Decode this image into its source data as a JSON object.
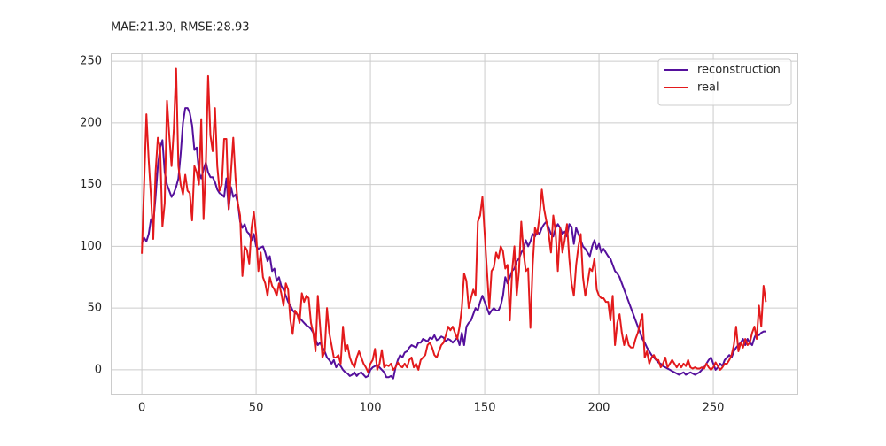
{
  "chart_data": {
    "type": "line",
    "title": "MAE:21.30,  RMSE:28.93",
    "x": [
      0,
      1,
      2,
      3,
      4,
      5,
      6,
      7,
      8,
      9,
      10,
      11,
      12,
      13,
      14,
      15,
      16,
      17,
      18,
      19,
      20,
      21,
      22,
      23,
      24,
      25,
      26,
      27,
      28,
      29,
      30,
      31,
      32,
      33,
      34,
      35,
      36,
      37,
      38,
      39,
      40,
      41,
      42,
      43,
      44,
      45,
      46,
      47,
      48,
      49,
      50,
      51,
      52,
      53,
      54,
      55,
      56,
      57,
      58,
      59,
      60,
      61,
      62,
      63,
      64,
      65,
      66,
      67,
      68,
      69,
      70,
      71,
      72,
      73,
      74,
      75,
      76,
      77,
      78,
      79,
      80,
      81,
      82,
      83,
      84,
      85,
      86,
      87,
      88,
      89,
      90,
      91,
      92,
      93,
      94,
      95,
      96,
      97,
      98,
      99,
      100,
      101,
      102,
      103,
      104,
      105,
      106,
      107,
      108,
      109,
      110,
      111,
      112,
      113,
      114,
      115,
      116,
      117,
      118,
      119,
      120,
      121,
      122,
      123,
      124,
      125,
      126,
      127,
      128,
      129,
      130,
      131,
      132,
      133,
      134,
      135,
      136,
      137,
      138,
      139,
      140,
      141,
      142,
      143,
      144,
      145,
      146,
      147,
      148,
      149,
      150,
      151,
      152,
      153,
      154,
      155,
      156,
      157,
      158,
      159,
      160,
      161,
      162,
      163,
      164,
      165,
      166,
      167,
      168,
      169,
      170,
      171,
      172,
      173,
      174,
      175,
      176,
      177,
      178,
      179,
      180,
      181,
      182,
      183,
      184,
      185,
      186,
      187,
      188,
      189,
      190,
      191,
      192,
      193,
      194,
      195,
      196,
      197,
      198,
      199,
      200,
      201,
      202,
      203,
      204,
      205,
      206,
      207,
      208,
      209,
      210,
      211,
      212,
      213,
      214,
      215,
      216,
      217,
      218,
      219,
      220,
      221,
      222,
      223,
      224,
      225,
      226,
      227,
      228,
      229,
      230,
      231,
      232,
      233,
      234,
      235,
      236,
      237,
      238,
      239,
      240,
      241,
      242,
      243,
      244,
      245,
      246,
      247,
      248,
      249,
      250,
      251,
      252,
      253,
      254,
      255,
      256,
      257,
      258,
      259,
      260,
      261,
      262,
      263,
      264,
      265,
      266,
      267,
      268,
      269,
      270,
      271,
      272,
      273
    ],
    "series": [
      {
        "name": "reconstruction",
        "color": "#55109c",
        "values": [
          102,
          107,
          104,
          110,
          122,
          118,
          140,
          165,
          180,
          186,
          160,
          150,
          145,
          140,
          143,
          148,
          155,
          175,
          200,
          212,
          212,
          208,
          198,
          178,
          180,
          160,
          155,
          162,
          168,
          160,
          156,
          156,
          152,
          146,
          143,
          142,
          140,
          155,
          130,
          148,
          140,
          142,
          135,
          120,
          115,
          118,
          112,
          110,
          105,
          110,
          100,
          98,
          99,
          100,
          95,
          88,
          92,
          80,
          82,
          72,
          75,
          68,
          65,
          60,
          55,
          52,
          48,
          46,
          45,
          42,
          40,
          38,
          36,
          35,
          33,
          30,
          25,
          20,
          22,
          18,
          15,
          10,
          8,
          5,
          8,
          2,
          5,
          3,
          0,
          -2,
          -3,
          -5,
          -4,
          -2,
          -5,
          -3,
          -2,
          -4,
          -6,
          -5,
          0,
          2,
          3,
          4,
          2,
          0,
          -2,
          -6,
          -6,
          -5,
          -7,
          2,
          8,
          12,
          10,
          14,
          15,
          18,
          20,
          19,
          18,
          22,
          22,
          25,
          24,
          23,
          26,
          25,
          28,
          24,
          25,
          27,
          26,
          23,
          25,
          24,
          22,
          24,
          26,
          20,
          30,
          20,
          35,
          38,
          40,
          45,
          50,
          48,
          55,
          60,
          55,
          50,
          45,
          48,
          50,
          48,
          48,
          52,
          60,
          75,
          70,
          75,
          80,
          82,
          88,
          90,
          95,
          98,
          105,
          100,
          104,
          110,
          108,
          112,
          110,
          115,
          118,
          120,
          115,
          110,
          108,
          115,
          118,
          115,
          110,
          112,
          108,
          118,
          116,
          102,
          115,
          110,
          105,
          100,
          98,
          95,
          92,
          100,
          105,
          98,
          102,
          95,
          98,
          95,
          92,
          90,
          85,
          80,
          78,
          75,
          70,
          65,
          60,
          55,
          50,
          45,
          40,
          35,
          30,
          25,
          22,
          18,
          15,
          12,
          10,
          8,
          6,
          5,
          3,
          2,
          1,
          0,
          -1,
          -2,
          -3,
          -4,
          -3,
          -2,
          -4,
          -3,
          -2,
          -3,
          -4,
          -3,
          -2,
          0,
          2,
          5,
          8,
          10,
          5,
          0,
          2,
          5,
          3,
          8,
          10,
          12,
          10,
          15,
          18,
          20,
          22,
          25,
          20,
          25,
          22,
          20,
          26,
          30,
          28,
          30,
          31,
          31
        ]
      },
      {
        "name": "real",
        "color": "#e31a1c",
        "values": [
          94,
          150,
          207,
          170,
          140,
          106,
          160,
          188,
          180,
          116,
          135,
          218,
          190,
          165,
          195,
          244,
          165,
          150,
          142,
          158,
          145,
          143,
          121,
          165,
          160,
          150,
          203,
          122,
          165,
          238,
          190,
          177,
          212,
          165,
          145,
          150,
          187,
          187,
          130,
          160,
          188,
          155,
          135,
          125,
          76,
          100,
          97,
          86,
          115,
          128,
          110,
          80,
          95,
          75,
          70,
          60,
          75,
          68,
          65,
          60,
          70,
          62,
          52,
          70,
          65,
          40,
          29,
          48,
          45,
          38,
          62,
          55,
          60,
          58,
          38,
          30,
          15,
          60,
          35,
          10,
          15,
          50,
          30,
          20,
          10,
          10,
          12,
          5,
          35,
          15,
          20,
          10,
          5,
          2,
          10,
          15,
          10,
          5,
          2,
          -2,
          5,
          8,
          17,
          0,
          5,
          16,
          2,
          4,
          3,
          5,
          0,
          2,
          6,
          3,
          2,
          5,
          2,
          8,
          10,
          2,
          5,
          0,
          8,
          10,
          12,
          20,
          22,
          18,
          12,
          10,
          15,
          20,
          22,
          28,
          35,
          32,
          35,
          30,
          25,
          35,
          50,
          78,
          72,
          50,
          58,
          65,
          60,
          120,
          125,
          140,
          110,
          80,
          50,
          80,
          83,
          95,
          90,
          100,
          96,
          82,
          85,
          40,
          80,
          100,
          60,
          80,
          120,
          95,
          80,
          82,
          34,
          85,
          115,
          110,
          125,
          146,
          130,
          120,
          110,
          95,
          125,
          112,
          80,
          115,
          95,
          105,
          118,
          90,
          70,
          60,
          85,
          100,
          110,
          75,
          60,
          70,
          82,
          80,
          90,
          65,
          60,
          58,
          58,
          55,
          55,
          40,
          60,
          20,
          38,
          45,
          30,
          20,
          28,
          20,
          18,
          18,
          25,
          30,
          38,
          45,
          10,
          15,
          5,
          10,
          12,
          8,
          8,
          2,
          5,
          10,
          2,
          5,
          8,
          5,
          2,
          5,
          2,
          5,
          3,
          8,
          2,
          1,
          2,
          1,
          1,
          2,
          1,
          5,
          2,
          0,
          2,
          6,
          3,
          0,
          2,
          5,
          5,
          8,
          12,
          20,
          35,
          15,
          22,
          18,
          25,
          20,
          22,
          30,
          35,
          25,
          52,
          35,
          68,
          55
        ]
      }
    ],
    "xlim": [
      -13.6,
      286.8
    ],
    "ylim": [
      -19.4,
      256.5
    ],
    "xticks": [
      0,
      50,
      100,
      150,
      200,
      250
    ],
    "yticks": [
      0,
      50,
      100,
      150,
      200,
      250
    ],
    "grid": true,
    "legend": "upper right"
  }
}
